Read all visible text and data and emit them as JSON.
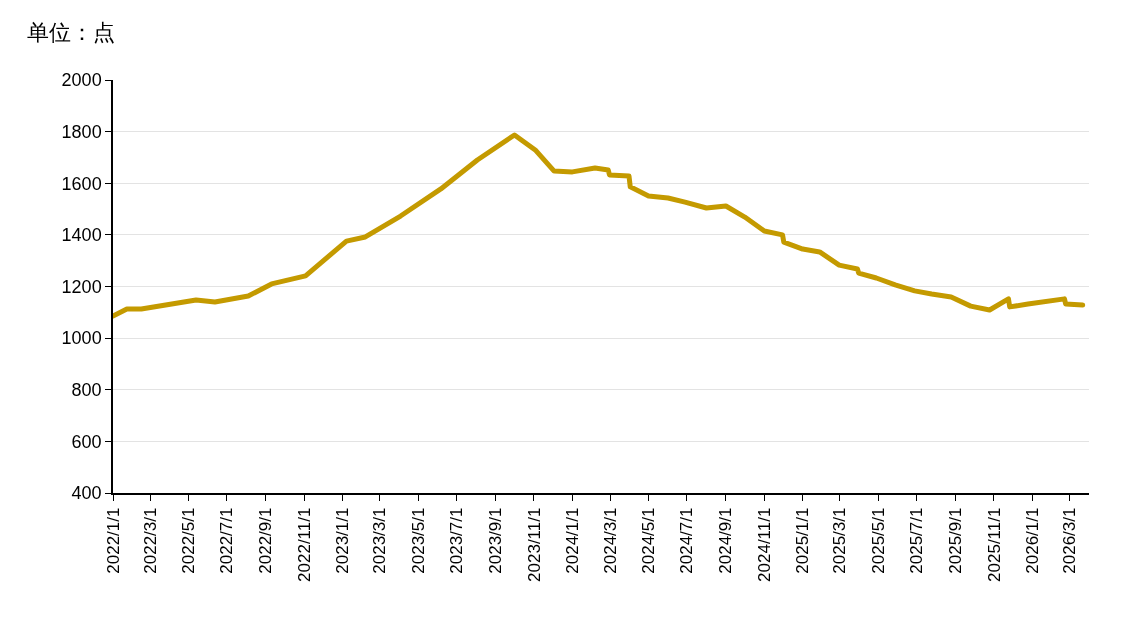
{
  "chart_data": {
    "type": "line",
    "ylabel": "单位：点",
    "x": [
      "2022-01-01",
      "2022-01-23",
      "2022-02-15",
      "2022-05-13",
      "2022-06-12",
      "2022-08-04",
      "2022-09-10",
      "2022-11-03",
      "2023-01-07",
      "2023-02-06",
      "2023-04-03",
      "2023-06-06",
      "2023-08-03",
      "2023-10-01",
      "2023-11-03",
      "2023-12-03",
      "2024-01-01",
      "2024-02-06",
      "2024-02-27",
      "2024-02-29",
      "2024-03-31",
      "2024-04-02",
      "2024-05-01",
      "2024-06-01",
      "2024-06-28",
      "2024-08-01",
      "2024-09-01",
      "2024-10-01",
      "2024-11-01",
      "2024-11-30",
      "2024-12-02",
      "2025-01-01",
      "2025-01-28",
      "2025-02-28",
      "2025-03-29",
      "2025-03-31",
      "2025-04-28",
      "2025-05-28",
      "2025-06-28",
      "2025-07-25",
      "2025-08-25",
      "2025-09-25",
      "2025-10-25",
      "2025-11-24",
      "2025-11-26",
      "2025-12-25",
      "2026-02-21",
      "2026-02-23",
      "2026-03-22"
    ],
    "series": [
      {
        "color": "#c49a00",
        "values": [
          1086,
          1113,
          1113,
          1148,
          1140,
          1163,
          1210,
          1241,
          1376,
          1392,
          1473,
          1578,
          1690,
          1787,
          1729,
          1647,
          1644,
          1659,
          1651,
          1632,
          1628,
          1586,
          1551,
          1543,
          1527,
          1504,
          1512,
          1469,
          1415,
          1400,
          1372,
          1345,
          1334,
          1283,
          1268,
          1252,
          1233,
          1206,
          1183,
          1171,
          1159,
          1124,
          1109,
          1152,
          1121,
          1132,
          1152,
          1132,
          1128
        ]
      }
    ],
    "xlim": [
      "2022-01-01",
      "2026-04-01"
    ],
    "xticks": [
      {
        "value": "2022-01-01",
        "label": "2022/1/1"
      },
      {
        "value": "2022-03-01",
        "label": "2022/3/1"
      },
      {
        "value": "2022-05-01",
        "label": "2022/5/1"
      },
      {
        "value": "2022-07-01",
        "label": "2022/7/1"
      },
      {
        "value": "2022-09-01",
        "label": "2022/9/1"
      },
      {
        "value": "2022-11-01",
        "label": "2022/11/1"
      },
      {
        "value": "2023-01-01",
        "label": "2023/1/1"
      },
      {
        "value": "2023-03-01",
        "label": "2023/3/1"
      },
      {
        "value": "2023-05-01",
        "label": "2023/5/1"
      },
      {
        "value": "2023-07-01",
        "label": "2023/7/1"
      },
      {
        "value": "2023-09-01",
        "label": "2023/9/1"
      },
      {
        "value": "2023-11-01",
        "label": "2023/11/1"
      },
      {
        "value": "2024-01-01",
        "label": "2024/1/1"
      },
      {
        "value": "2024-03-01",
        "label": "2024/3/1"
      },
      {
        "value": "2024-05-01",
        "label": "2024/5/1"
      },
      {
        "value": "2024-07-01",
        "label": "2024/7/1"
      },
      {
        "value": "2024-09-01",
        "label": "2024/9/1"
      },
      {
        "value": "2024-11-01",
        "label": "2024/11/1"
      },
      {
        "value": "2025-01-01",
        "label": "2025/1/1"
      },
      {
        "value": "2025-03-01",
        "label": "2025/3/1"
      },
      {
        "value": "2025-05-01",
        "label": "2025/5/1"
      },
      {
        "value": "2025-07-01",
        "label": "2025/7/1"
      },
      {
        "value": "2025-09-01",
        "label": "2025/9/1"
      },
      {
        "value": "2025-11-01",
        "label": "2025/11/1"
      },
      {
        "value": "2026-01-01",
        "label": "2026/1/1"
      },
      {
        "value": "2026-03-01",
        "label": "2026/3/1"
      }
    ],
    "ylim": [
      400,
      2000
    ],
    "yticks": [
      400,
      600,
      800,
      1000,
      1200,
      1400,
      1600,
      1800,
      2000
    ],
    "grid": "y",
    "marker": "none",
    "line_style": "solid"
  }
}
